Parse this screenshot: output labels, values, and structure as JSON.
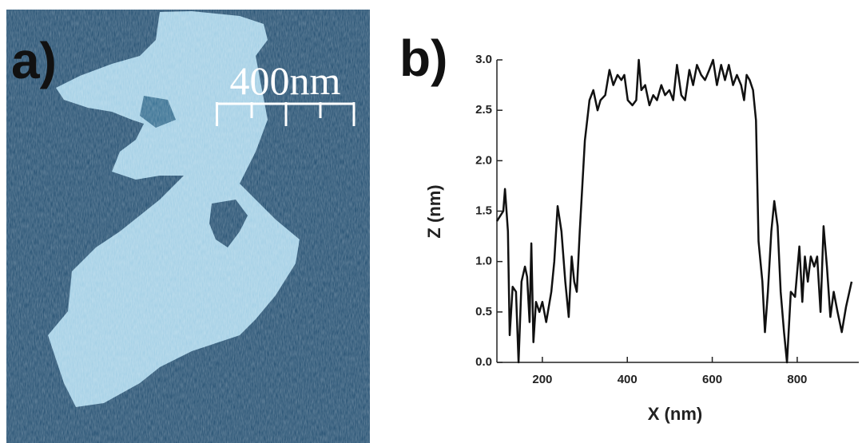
{
  "panel_a": {
    "label": "a)",
    "scale_bar": "400nm"
  },
  "chart_data": {
    "type": "line",
    "label": "b)",
    "x_label": "X (nm)",
    "y_label": "Z (nm)",
    "x": [
      93,
      108,
      112,
      119,
      123,
      130,
      138,
      144,
      151,
      159,
      164,
      170,
      174,
      179,
      185,
      193,
      200,
      209,
      221,
      228,
      236,
      245,
      254,
      262,
      269,
      275,
      281,
      288,
      300,
      311,
      320,
      330,
      337,
      348,
      358,
      367,
      377,
      386,
      393,
      401,
      412,
      421,
      427,
      433,
      442,
      452,
      461,
      470,
      480,
      489,
      499,
      508,
      517,
      527,
      536,
      546,
      555,
      564,
      574,
      583,
      593,
      602,
      611,
      621,
      630,
      639,
      649,
      658,
      668,
      675,
      681,
      688,
      696,
      703,
      709,
      718,
      724,
      731,
      739,
      746,
      754,
      761,
      769,
      776,
      785,
      795,
      805,
      812,
      818,
      825,
      832,
      840,
      847,
      855,
      862,
      870,
      878,
      886,
      895,
      905,
      915,
      928
    ],
    "series": [
      {
        "color": "#111111",
        "values": [
          1.4,
          1.5,
          1.72,
          1.3,
          0.27,
          0.75,
          0.7,
          0.0,
          0.8,
          0.95,
          0.85,
          0.4,
          1.18,
          0.2,
          0.6,
          0.5,
          0.6,
          0.4,
          0.7,
          1.0,
          1.55,
          1.3,
          0.8,
          0.45,
          1.05,
          0.8,
          0.7,
          1.3,
          2.2,
          2.6,
          2.7,
          2.5,
          2.6,
          2.65,
          2.9,
          2.75,
          2.85,
          2.8,
          2.85,
          2.6,
          2.55,
          2.6,
          3.0,
          2.7,
          2.75,
          2.55,
          2.65,
          2.6,
          2.75,
          2.65,
          2.7,
          2.6,
          2.95,
          2.65,
          2.6,
          2.9,
          2.75,
          2.95,
          2.85,
          2.8,
          2.9,
          3.0,
          2.75,
          2.95,
          2.8,
          2.95,
          2.75,
          2.85,
          2.75,
          2.6,
          2.85,
          2.8,
          2.7,
          2.4,
          1.2,
          0.8,
          0.3,
          0.7,
          1.3,
          1.6,
          1.35,
          0.7,
          0.3,
          0.0,
          0.7,
          0.65,
          1.15,
          0.6,
          1.05,
          0.8,
          1.05,
          0.95,
          1.05,
          0.5,
          1.35,
          0.95,
          0.45,
          0.7,
          0.5,
          0.3,
          0.55,
          0.8
        ]
      }
    ],
    "xlim": [
      93,
      945
    ],
    "ylim": [
      0,
      3
    ],
    "xticks": [
      200,
      400,
      600,
      800
    ],
    "yticks": [
      {
        "value": 0,
        "label": "0.0"
      },
      {
        "value": 0.5,
        "label": "0.5"
      },
      {
        "value": 1,
        "label": "1.0"
      },
      {
        "value": 1.5,
        "label": "1.5"
      },
      {
        "value": 2,
        "label": "2.0"
      },
      {
        "value": 2.5,
        "label": "2.5"
      },
      {
        "value": 3,
        "label": "3.0"
      }
    ]
  }
}
